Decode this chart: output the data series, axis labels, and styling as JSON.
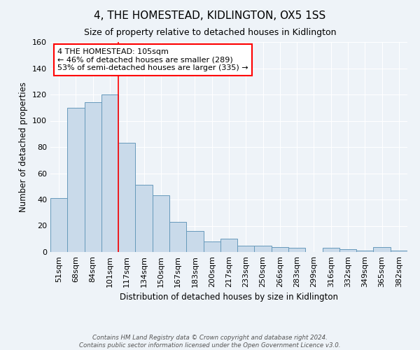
{
  "title": "4, THE HOMESTEAD, KIDLINGTON, OX5 1SS",
  "subtitle": "Size of property relative to detached houses in Kidlington",
  "xlabel": "Distribution of detached houses by size in Kidlington",
  "ylabel": "Number of detached properties",
  "bin_labels": [
    "51sqm",
    "68sqm",
    "84sqm",
    "101sqm",
    "117sqm",
    "134sqm",
    "150sqm",
    "167sqm",
    "183sqm",
    "200sqm",
    "217sqm",
    "233sqm",
    "250sqm",
    "266sqm",
    "283sqm",
    "299sqm",
    "316sqm",
    "332sqm",
    "349sqm",
    "365sqm",
    "382sqm"
  ],
  "bar_heights": [
    41,
    110,
    114,
    120,
    83,
    51,
    43,
    23,
    16,
    8,
    10,
    5,
    5,
    4,
    3,
    0,
    3,
    2,
    1,
    4,
    1
  ],
  "bar_color": "#c9daea",
  "bar_edge_color": "#6699bb",
  "background_color": "#eef3f8",
  "vline_x": 3,
  "vline_color": "red",
  "annotation_title": "4 THE HOMESTEAD: 105sqm",
  "annotation_line1": "← 46% of detached houses are smaller (289)",
  "annotation_line2": "53% of semi-detached houses are larger (335) →",
  "annotation_box_color": "white",
  "annotation_box_edge_color": "red",
  "ylim": [
    0,
    160
  ],
  "yticks": [
    0,
    20,
    40,
    60,
    80,
    100,
    120,
    140,
    160
  ],
  "footer1": "Contains HM Land Registry data © Crown copyright and database right 2024.",
  "footer2": "Contains public sector information licensed under the Open Government Licence v3.0."
}
